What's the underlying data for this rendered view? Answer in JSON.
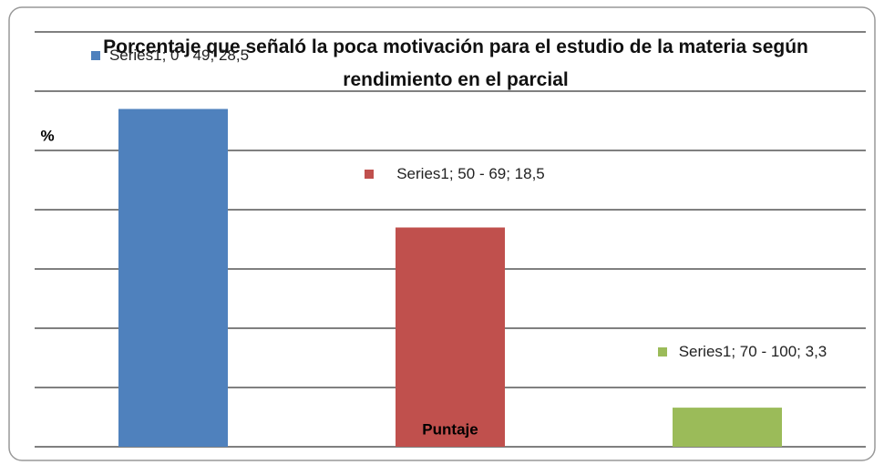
{
  "chart_data": {
    "type": "bar",
    "title": "Porcentaje que señaló la poca motivación para el estudio de la materia según rendimiento en el parcial",
    "y_label": "%",
    "x_label": "Puntaje",
    "values": [
      28.5,
      18.5,
      3.3
    ],
    "value_labels": [
      "Series1; 0 - 49; 28,5",
      "Series1; 50 - 69; 18,5",
      "Series1; 70 - 100; 3,3"
    ],
    "colors": [
      "#4f81bd",
      "#c0504d",
      "#9bbb59"
    ],
    "ylim": [
      0,
      35
    ],
    "yticks": [
      0,
      5,
      10,
      15,
      20,
      25,
      30,
      35
    ],
    "grid": true
  }
}
